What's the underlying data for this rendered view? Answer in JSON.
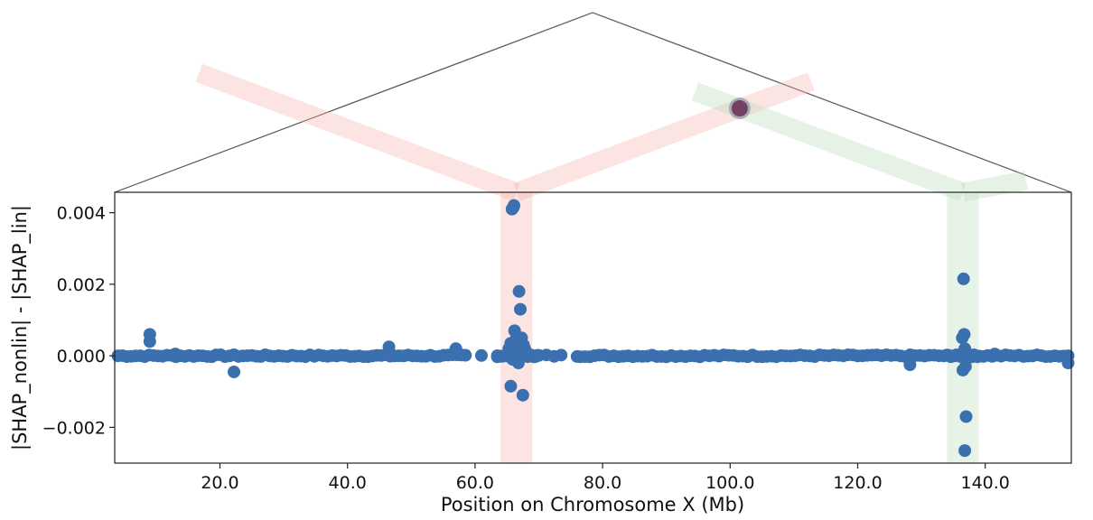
{
  "chart_data": {
    "type": "scatter",
    "title": "",
    "xlabel": "Position on Chromosome X (Mb)",
    "ylabel": "|SHAP_nonlin| - |SHAP_lin|",
    "xlim": [
      3.5,
      153.5
    ],
    "ylim": [
      -0.003,
      0.00457
    ],
    "x_ticks": [
      20.0,
      40.0,
      60.0,
      80.0,
      100.0,
      120.0,
      140.0
    ],
    "x_tick_labels": [
      "20.0",
      "40.0",
      "60.0",
      "80.0",
      "100.0",
      "120.0",
      "140.0"
    ],
    "y_ticks": [
      -0.002,
      0.0,
      0.002,
      0.004
    ],
    "y_tick_labels": [
      "−0.002",
      "0.000",
      "0.002",
      "0.004"
    ],
    "grid": false,
    "point_color": "#3a70b0",
    "highlight_bands": [
      {
        "x_from": 64.0,
        "x_to": 69.0,
        "color": "#f4b3ab"
      },
      {
        "x_from": 134.0,
        "x_to": 139.0,
        "color": "#b9dcb8"
      }
    ],
    "interaction_point_color": "#6b2c55",
    "baseline_ranges": [
      [
        4.0,
        58.5,
        0.7
      ],
      [
        58.5,
        63.5,
        2.5
      ],
      [
        63.5,
        70.0,
        0.25
      ],
      [
        70.0,
        73.5,
        1.2
      ],
      [
        73.5,
        76.5,
        2.5
      ],
      [
        76.5,
        134.0,
        0.75
      ],
      [
        134.0,
        139.0,
        0.3
      ],
      [
        139.0,
        153.2,
        0.7
      ]
    ],
    "outlier_points": [
      {
        "x": 9.0,
        "y": 0.0006
      },
      {
        "x": 9.0,
        "y": 0.0004
      },
      {
        "x": 13.0,
        "y": 5e-05
      },
      {
        "x": 22.2,
        "y": -0.00045
      },
      {
        "x": 46.5,
        "y": 0.00025
      },
      {
        "x": 57.0,
        "y": 0.0002
      },
      {
        "x": 65.8,
        "y": 0.0041
      },
      {
        "x": 66.1,
        "y": 0.0042
      },
      {
        "x": 66.0,
        "y": 0.00415
      },
      {
        "x": 66.9,
        "y": 0.0018
      },
      {
        "x": 67.1,
        "y": 0.0013
      },
      {
        "x": 66.2,
        "y": 0.0007
      },
      {
        "x": 66.5,
        "y": 0.0005
      },
      {
        "x": 67.3,
        "y": 0.0005
      },
      {
        "x": 65.6,
        "y": 0.00035
      },
      {
        "x": 66.6,
        "y": 0.0003
      },
      {
        "x": 67.6,
        "y": 0.0003
      },
      {
        "x": 65.3,
        "y": 0.0002
      },
      {
        "x": 67.8,
        "y": 0.0002
      },
      {
        "x": 65.9,
        "y": -0.0001
      },
      {
        "x": 66.8,
        "y": -0.0002
      },
      {
        "x": 65.6,
        "y": -0.00085
      },
      {
        "x": 67.5,
        "y": -0.0011
      },
      {
        "x": 128.2,
        "y": -0.00025
      },
      {
        "x": 136.6,
        "y": 0.00215
      },
      {
        "x": 136.7,
        "y": 0.0006
      },
      {
        "x": 136.4,
        "y": 0.0005
      },
      {
        "x": 136.8,
        "y": 0.0002
      },
      {
        "x": 136.5,
        "y": -0.0004
      },
      {
        "x": 136.9,
        "y": -0.0003
      },
      {
        "x": 137.0,
        "y": -0.0017
      },
      {
        "x": 136.8,
        "y": -0.00265
      },
      {
        "x": 141.5,
        "y": 5e-05
      },
      {
        "x": 153.0,
        "y": -0.0002
      }
    ]
  }
}
